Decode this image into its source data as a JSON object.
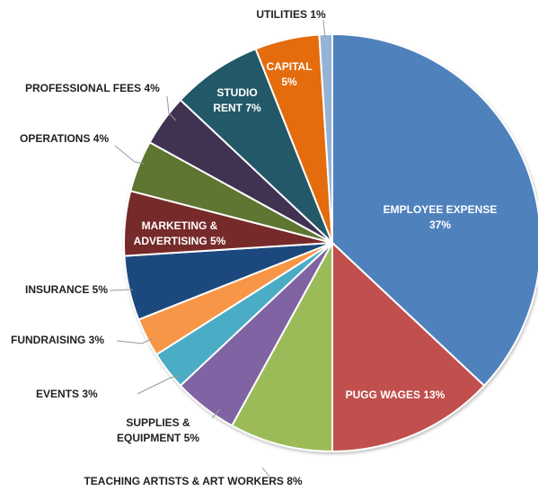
{
  "chart_data": {
    "type": "pie",
    "title": "",
    "slices": [
      {
        "label": "EMPLOYEE EXPENSE",
        "pct_label": "37%",
        "value": 37,
        "color": "#4f81bd",
        "label_inside": true
      },
      {
        "label": "PUGG WAGES 13%",
        "pct_label": "",
        "value": 13,
        "color": "#c0504d",
        "label_inside": true
      },
      {
        "label": "TEACHING ARTISTS & ART WORKERS 8%",
        "pct_label": "",
        "value": 8,
        "color": "#9bbb59",
        "label_inside": false
      },
      {
        "label": "SUPPLIES &",
        "pct_label": "EQUIPMENT 5%",
        "value": 5,
        "color": "#8064a2",
        "label_inside": false
      },
      {
        "label": "EVENTS 3%",
        "pct_label": "",
        "value": 3,
        "color": "#4bacc6",
        "label_inside": false
      },
      {
        "label": "FUNDRAISING 3%",
        "pct_label": "",
        "value": 3,
        "color": "#f79646",
        "label_inside": false
      },
      {
        "label": "INSURANCE 5%",
        "pct_label": "",
        "value": 5,
        "color": "#1f497d",
        "label_inside": false
      },
      {
        "label": "MARKETING &",
        "pct_label": "ADVERTISING 5%",
        "value": 5,
        "color": "#772c2a",
        "label_inside": true
      },
      {
        "label": "OPERATIONS 4%",
        "pct_label": "",
        "value": 4,
        "color": "#5f7530",
        "label_inside": false
      },
      {
        "label": "PROFESSIONAL FEES 4%",
        "pct_label": "",
        "value": 4,
        "color": "#3f3151",
        "label_inside": false
      },
      {
        "label": "STUDIO",
        "pct_label": "RENT 7%",
        "value": 7,
        "color": "#215968",
        "label_inside": true
      },
      {
        "label": "CAPITAL",
        "pct_label": "5%",
        "value": 5,
        "color": "#e46c0a",
        "label_inside": true
      },
      {
        "label": "UTILITIES 1%",
        "pct_label": "",
        "value": 1,
        "color": "#95b3d7",
        "label_inside": false
      }
    ]
  }
}
